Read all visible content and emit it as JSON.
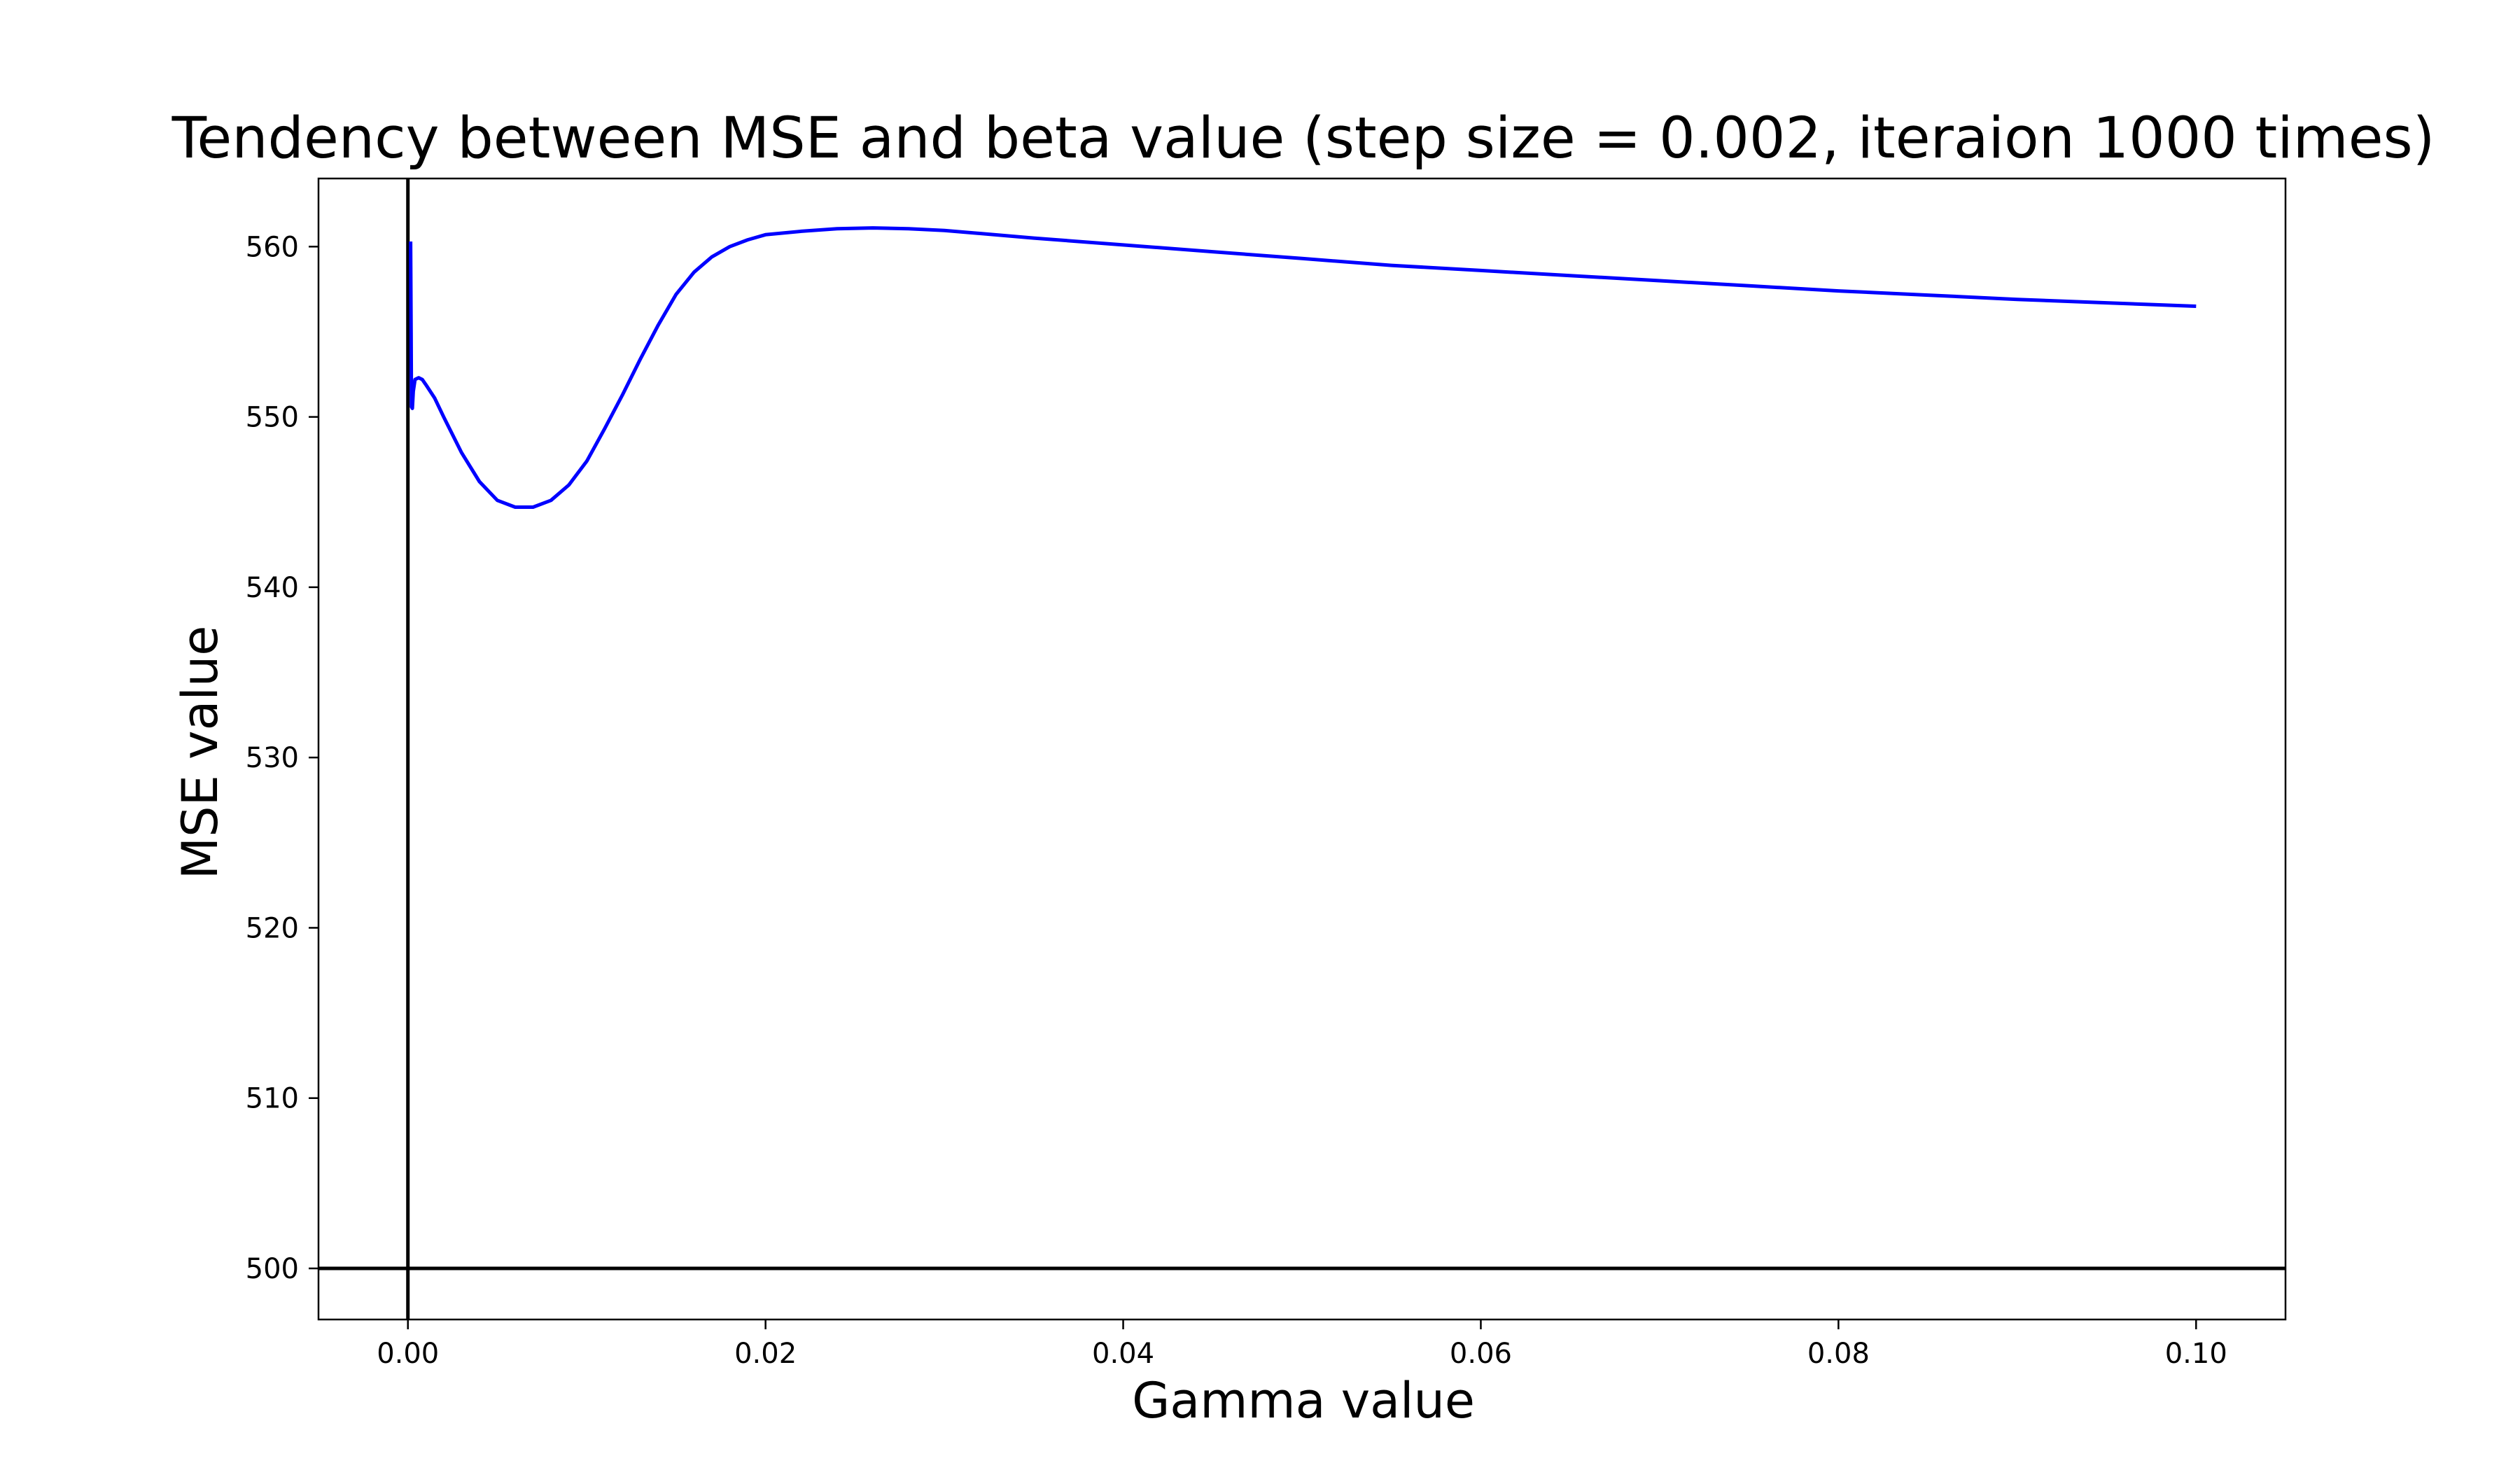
{
  "chart_data": {
    "type": "line",
    "title": "Tendency between MSE and beta value (step size = 0.002, iteraion 1000 times)",
    "xlabel": "Gamma value",
    "ylabel": "MSE value",
    "xlim": [
      -0.005,
      0.105
    ],
    "ylim": [
      497,
      564
    ],
    "xticks": [
      0.0,
      0.02,
      0.04,
      0.06,
      0.08,
      0.1
    ],
    "xtick_labels": [
      "0.00",
      "0.02",
      "0.04",
      "0.06",
      "0.08",
      "0.10"
    ],
    "yticks": [
      500,
      510,
      520,
      530,
      540,
      550,
      560
    ],
    "ytick_labels": [
      "500",
      "510",
      "520",
      "530",
      "540",
      "550",
      "560"
    ],
    "grid": false,
    "reference_lines": {
      "vertical_x": 0.0,
      "horizontal_y": 500
    },
    "series": [
      {
        "color": "#0000ff",
        "x": [
          0.00015,
          0.00018,
          0.0002,
          0.00025,
          0.0003,
          0.0004,
          0.0006,
          0.0008,
          0.001,
          0.0015,
          0.002,
          0.003,
          0.004,
          0.005,
          0.006,
          0.007,
          0.008,
          0.009,
          0.01,
          0.011,
          0.012,
          0.013,
          0.014,
          0.015,
          0.016,
          0.017,
          0.018,
          0.019,
          0.02,
          0.022,
          0.024,
          0.026,
          0.028,
          0.03,
          0.035,
          0.04,
          0.045,
          0.05,
          0.055,
          0.06,
          0.065,
          0.07,
          0.075,
          0.08,
          0.085,
          0.09,
          0.095,
          0.1
        ],
        "y": [
          560.3,
          555.0,
          550.6,
          550.5,
          551.5,
          552.2,
          552.3,
          552.2,
          551.9,
          551.1,
          550.0,
          547.9,
          546.2,
          545.1,
          544.7,
          544.7,
          545.1,
          546.0,
          547.4,
          549.3,
          551.3,
          553.4,
          555.4,
          557.2,
          558.5,
          559.4,
          560.0,
          560.4,
          560.7,
          560.9,
          561.05,
          561.1,
          561.05,
          560.95,
          560.5,
          560.1,
          559.7,
          559.3,
          558.9,
          558.6,
          558.3,
          558.0,
          557.7,
          557.4,
          557.15,
          556.9,
          556.7,
          556.5
        ]
      }
    ]
  }
}
